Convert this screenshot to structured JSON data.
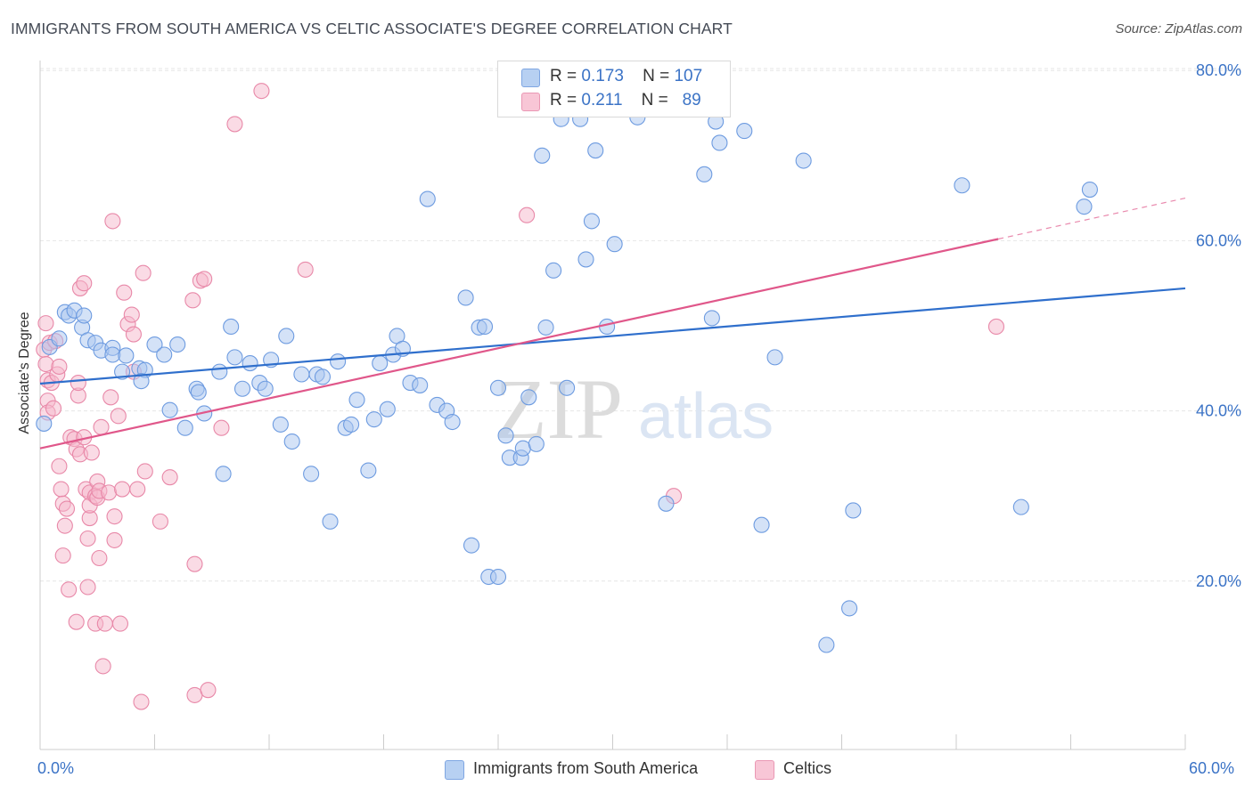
{
  "title": "IMMIGRANTS FROM SOUTH AMERICA VS CELTIC ASSOCIATE'S DEGREE CORRELATION CHART",
  "source": "Source: ZipAtlas.com",
  "watermark": {
    "zip": "ZIP",
    "atlas": "atlas"
  },
  "colors": {
    "blue_fill": "#a9c6ef",
    "blue_stroke": "#6d9be0",
    "blue_line": "#2f6fcc",
    "pink_fill": "#f6b8cc",
    "pink_stroke": "#e888a8",
    "pink_line": "#e0578a",
    "grid": "#e6e6e6",
    "tick_text": "#3b73c6"
  },
  "legend_top": {
    "rows": [
      {
        "r_label": "R =",
        "r_value": "0.173",
        "n_label": "N =",
        "n_value": "107"
      },
      {
        "r_label": "R =",
        "r_value": "0.211",
        "n_label": "N =",
        "n_value": "89"
      }
    ]
  },
  "legend_bottom": {
    "blue": "Immigrants from South America",
    "pink": "Celtics"
  },
  "chart_data": {
    "type": "scatter",
    "title": "IMMIGRANTS FROM SOUTH AMERICA VS CELTIC ASSOCIATE'S DEGREE CORRELATION CHART",
    "xlabel": "",
    "ylabel": "Associate's Degree",
    "xlim": [
      0,
      60
    ],
    "ylim": [
      0,
      84
    ],
    "x_tick_labels": [
      "0.0%",
      "60.0%"
    ],
    "y_ticks": [
      20,
      40,
      60,
      80
    ],
    "y_tick_labels": [
      "20.0%",
      "40.0%",
      "60.0%",
      "80.0%"
    ],
    "grid": true,
    "legend_position": "top-center",
    "series": [
      {
        "name": "Immigrants from South America",
        "color": "blue",
        "R": 0.173,
        "N": 107,
        "trend": {
          "x": [
            0,
            60
          ],
          "y": [
            43.2,
            54.4
          ],
          "dashed_from": null
        },
        "points": [
          [
            0.2,
            38.5
          ],
          [
            0.5,
            47.5
          ],
          [
            1.0,
            48.5
          ],
          [
            1.3,
            51.6
          ],
          [
            1.5,
            51.2
          ],
          [
            1.8,
            51.8
          ],
          [
            2.2,
            49.8
          ],
          [
            2.3,
            51.2
          ],
          [
            2.5,
            48.3
          ],
          [
            2.9,
            48.0
          ],
          [
            3.2,
            47.1
          ],
          [
            3.8,
            47.4
          ],
          [
            3.8,
            46.6
          ],
          [
            4.3,
            44.6
          ],
          [
            4.5,
            46.5
          ],
          [
            5.2,
            45.0
          ],
          [
            5.5,
            44.8
          ],
          [
            5.3,
            43.5
          ],
          [
            6.0,
            47.8
          ],
          [
            6.5,
            46.6
          ],
          [
            7.2,
            47.8
          ],
          [
            6.8,
            40.1
          ],
          [
            7.6,
            38.0
          ],
          [
            8.2,
            42.6
          ],
          [
            8.3,
            42.2
          ],
          [
            8.6,
            39.7
          ],
          [
            9.4,
            44.6
          ],
          [
            9.6,
            32.6
          ],
          [
            10.0,
            49.9
          ],
          [
            10.2,
            46.3
          ],
          [
            10.6,
            42.6
          ],
          [
            11.0,
            45.6
          ],
          [
            11.5,
            43.3
          ],
          [
            11.8,
            42.6
          ],
          [
            12.1,
            46.0
          ],
          [
            12.6,
            38.4
          ],
          [
            12.9,
            48.8
          ],
          [
            13.2,
            36.4
          ],
          [
            13.7,
            44.3
          ],
          [
            14.2,
            32.6
          ],
          [
            14.5,
            44.3
          ],
          [
            14.8,
            44.0
          ],
          [
            15.2,
            27.0
          ],
          [
            15.6,
            45.8
          ],
          [
            16.0,
            38.0
          ],
          [
            16.3,
            38.4
          ],
          [
            16.6,
            41.3
          ],
          [
            17.2,
            33.0
          ],
          [
            17.5,
            39.0
          ],
          [
            17.8,
            45.6
          ],
          [
            18.2,
            40.2
          ],
          [
            18.5,
            46.6
          ],
          [
            18.7,
            48.8
          ],
          [
            19.0,
            47.3
          ],
          [
            19.4,
            43.3
          ],
          [
            19.9,
            43.0
          ],
          [
            20.3,
            64.9
          ],
          [
            20.8,
            40.7
          ],
          [
            21.3,
            40.0
          ],
          [
            21.6,
            38.7
          ],
          [
            22.3,
            53.3
          ],
          [
            22.6,
            24.2
          ],
          [
            23.0,
            49.8
          ],
          [
            23.3,
            49.9
          ],
          [
            23.5,
            20.5
          ],
          [
            24.0,
            20.5
          ],
          [
            24.0,
            42.7
          ],
          [
            24.4,
            37.1
          ],
          [
            24.6,
            34.5
          ],
          [
            25.2,
            34.5
          ],
          [
            25.3,
            35.6
          ],
          [
            25.6,
            41.6
          ],
          [
            26.0,
            36.1
          ],
          [
            26.3,
            70.0
          ],
          [
            26.5,
            49.8
          ],
          [
            26.9,
            56.5
          ],
          [
            27.3,
            74.3
          ],
          [
            27.6,
            42.7
          ],
          [
            28.3,
            74.3
          ],
          [
            28.6,
            57.8
          ],
          [
            28.9,
            62.3
          ],
          [
            29.1,
            70.6
          ],
          [
            29.7,
            49.9
          ],
          [
            30.1,
            59.6
          ],
          [
            31.3,
            74.5
          ],
          [
            32.8,
            29.1
          ],
          [
            34.8,
            67.8
          ],
          [
            35.4,
            74.0
          ],
          [
            35.6,
            71.5
          ],
          [
            35.2,
            50.9
          ],
          [
            36.9,
            72.9
          ],
          [
            37.8,
            26.6
          ],
          [
            38.5,
            46.3
          ],
          [
            40.0,
            69.4
          ],
          [
            41.2,
            12.5
          ],
          [
            42.4,
            16.8
          ],
          [
            42.6,
            28.3
          ],
          [
            48.3,
            66.5
          ],
          [
            51.4,
            28.7
          ],
          [
            54.7,
            64.0
          ],
          [
            55.0,
            66.0
          ]
        ]
      },
      {
        "name": "Celtics",
        "color": "pink",
        "R": 0.211,
        "N": 89,
        "trend": {
          "x": [
            0,
            60
          ],
          "y": [
            35.6,
            65.0
          ],
          "dashed_from": 50.2
        },
        "points": [
          [
            0.2,
            47.2
          ],
          [
            0.3,
            45.5
          ],
          [
            0.3,
            50.3
          ],
          [
            0.4,
            43.6
          ],
          [
            0.4,
            41.2
          ],
          [
            0.4,
            39.8
          ],
          [
            0.5,
            48.0
          ],
          [
            0.6,
            43.3
          ],
          [
            0.7,
            40.3
          ],
          [
            0.8,
            48.2
          ],
          [
            0.9,
            44.3
          ],
          [
            1.0,
            45.2
          ],
          [
            1.0,
            33.5
          ],
          [
            1.1,
            30.8
          ],
          [
            1.2,
            29.1
          ],
          [
            1.2,
            23.0
          ],
          [
            1.3,
            26.5
          ],
          [
            1.4,
            28.5
          ],
          [
            1.5,
            19.0
          ],
          [
            1.6,
            36.9
          ],
          [
            1.8,
            36.7
          ],
          [
            1.9,
            35.5
          ],
          [
            1.9,
            15.2
          ],
          [
            2.0,
            41.8
          ],
          [
            2.0,
            43.3
          ],
          [
            2.1,
            34.9
          ],
          [
            2.1,
            54.4
          ],
          [
            2.3,
            55.0
          ],
          [
            2.3,
            36.9
          ],
          [
            2.4,
            30.8
          ],
          [
            2.5,
            19.3
          ],
          [
            2.5,
            25.0
          ],
          [
            2.6,
            27.4
          ],
          [
            2.6,
            30.4
          ],
          [
            2.6,
            28.9
          ],
          [
            2.7,
            35.1
          ],
          [
            2.9,
            15.0
          ],
          [
            2.9,
            30.0
          ],
          [
            3.0,
            31.7
          ],
          [
            3.0,
            29.8
          ],
          [
            3.1,
            22.7
          ],
          [
            3.1,
            30.6
          ],
          [
            3.2,
            38.1
          ],
          [
            3.3,
            10.0
          ],
          [
            3.4,
            15.0
          ],
          [
            3.6,
            30.4
          ],
          [
            3.7,
            41.6
          ],
          [
            3.8,
            62.3
          ],
          [
            3.9,
            24.8
          ],
          [
            3.9,
            27.6
          ],
          [
            4.1,
            39.4
          ],
          [
            4.2,
            15.0
          ],
          [
            4.3,
            30.8
          ],
          [
            4.4,
            53.9
          ],
          [
            4.6,
            50.2
          ],
          [
            4.8,
            51.3
          ],
          [
            4.9,
            44.6
          ],
          [
            4.9,
            49.0
          ],
          [
            5.1,
            30.8
          ],
          [
            5.3,
            5.8
          ],
          [
            5.4,
            56.2
          ],
          [
            5.5,
            32.9
          ],
          [
            6.3,
            27.0
          ],
          [
            6.8,
            32.2
          ],
          [
            8.1,
            22.0
          ],
          [
            8.0,
            53.0
          ],
          [
            8.1,
            6.6
          ],
          [
            8.4,
            55.3
          ],
          [
            8.6,
            55.5
          ],
          [
            8.8,
            7.2
          ],
          [
            9.5,
            38.0
          ],
          [
            10.2,
            73.7
          ],
          [
            11.6,
            77.6
          ],
          [
            13.9,
            56.6
          ],
          [
            25.5,
            63.0
          ],
          [
            33.2,
            30.0
          ],
          [
            50.1,
            49.9
          ]
        ]
      }
    ]
  }
}
